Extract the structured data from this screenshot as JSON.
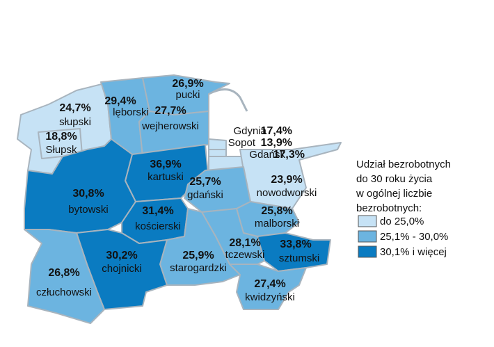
{
  "map": {
    "regions": [
      {
        "name": "słupski",
        "value": 24.7,
        "value_label": "24,7%",
        "color": "#c6e2f5"
      },
      {
        "name": "Słupsk",
        "value": 18.8,
        "value_label": "18,8%",
        "color": "#c6e2f5"
      },
      {
        "name": "lęborski",
        "value": 29.4,
        "value_label": "29,4%",
        "color": "#6cb4e0"
      },
      {
        "name": "pucki",
        "value": 26.9,
        "value_label": "26,9%",
        "color": "#6cb4e0"
      },
      {
        "name": "wejherowski",
        "value": 27.7,
        "value_label": "27,7%",
        "color": "#6cb4e0"
      },
      {
        "name": "kartuski",
        "value": 36.9,
        "value_label": "36,9%",
        "color": "#0a7bc1"
      },
      {
        "name": "Gdynia",
        "value": 17.4,
        "value_label": "17,4%",
        "color": "#c6e2f5"
      },
      {
        "name": "Sopot",
        "value": 13.9,
        "value_label": "13,9%",
        "color": "#c6e2f5"
      },
      {
        "name": "Gdańsk",
        "value": 17.3,
        "value_label": "17,3%",
        "color": "#c6e2f5"
      },
      {
        "name": "nowodworski",
        "value": 23.9,
        "value_label": "23,9%",
        "color": "#c6e2f5"
      },
      {
        "name": "gdański",
        "value": 25.7,
        "value_label": "25,7%",
        "color": "#6cb4e0"
      },
      {
        "name": "bytowski",
        "value": 30.8,
        "value_label": "30,8%",
        "color": "#0a7bc1"
      },
      {
        "name": "kościerski",
        "value": 31.4,
        "value_label": "31,4%",
        "color": "#0a7bc1"
      },
      {
        "name": "malborski",
        "value": 25.8,
        "value_label": "25,8%",
        "color": "#6cb4e0"
      },
      {
        "name": "sztumski",
        "value": 33.8,
        "value_label": "33,8%",
        "color": "#0a7bc1"
      },
      {
        "name": "tczewski",
        "value": 28.1,
        "value_label": "28,1%",
        "color": "#6cb4e0"
      },
      {
        "name": "starogardzki",
        "value": 25.9,
        "value_label": "25,9%",
        "color": "#6cb4e0"
      },
      {
        "name": "chojnicki",
        "value": 30.2,
        "value_label": "30,2%",
        "color": "#0a7bc1"
      },
      {
        "name": "człuchowski",
        "value": 26.8,
        "value_label": "26,8%",
        "color": "#6cb4e0"
      },
      {
        "name": "kwidzyński",
        "value": 27.4,
        "value_label": "27,4%",
        "color": "#6cb4e0"
      }
    ],
    "legend": {
      "title": [
        "Udział bezrobotnych",
        "do 30 roku życia",
        "w ogólnej liczbie",
        "bezrobotnych:"
      ],
      "items": [
        {
          "label": "do 25,0%",
          "color": "#c6e2f5"
        },
        {
          "label": "25,1% - 30,0%",
          "color": "#6cb4e0"
        },
        {
          "label": "30,1% i więcej",
          "color": "#0a7bc1"
        }
      ]
    }
  }
}
